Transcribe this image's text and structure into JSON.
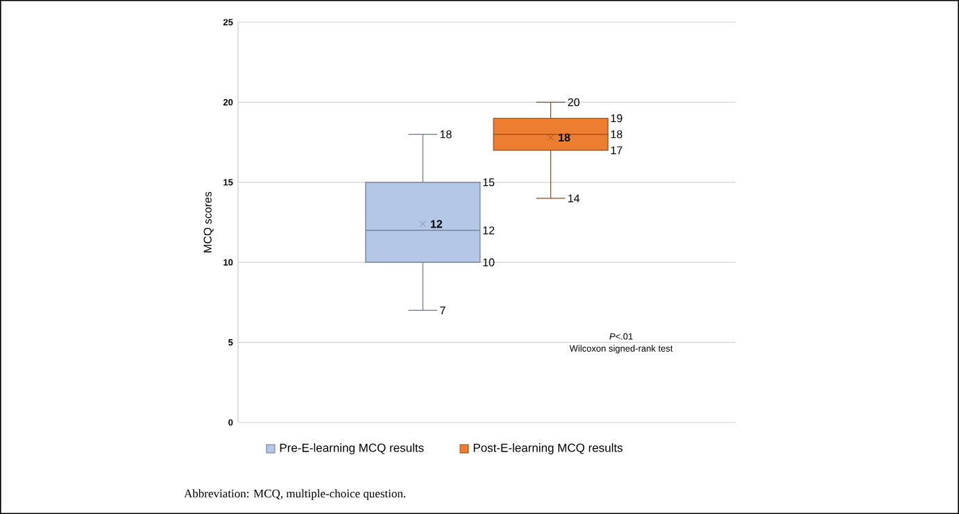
{
  "chart_data": {
    "type": "box",
    "ylabel": "MCQ scores",
    "categories": [
      null
    ],
    "ylim": [
      0,
      25
    ],
    "yticks": [
      0,
      5,
      10,
      15,
      20,
      25
    ],
    "grid": "y",
    "legend": "bottom",
    "series": [
      {
        "name": "Pre-E-learning MCQ results",
        "color": "#b4c7e7",
        "boxes": [
          {
            "low": 7,
            "q1": 10,
            "median": 12,
            "q3": 15,
            "high": 18,
            "mean": 12.4
          }
        ]
      },
      {
        "name": "Post-E-learning MCQ results",
        "color": "#ed7d31",
        "boxes": [
          {
            "low": 14,
            "q1": 17,
            "median": 18,
            "q3": 19,
            "high": 20,
            "mean": 17.8
          }
        ]
      }
    ],
    "annotations": [
      "7",
      "10",
      "12",
      "15",
      "18",
      "**12**",
      "14",
      "17",
      "18",
      "19",
      "20",
      "**18**",
      "*P*<.01",
      "Wilcoxon signed-rank test",
      "Abbreviation: MCQ, multiple-choice question."
    ]
  }
}
